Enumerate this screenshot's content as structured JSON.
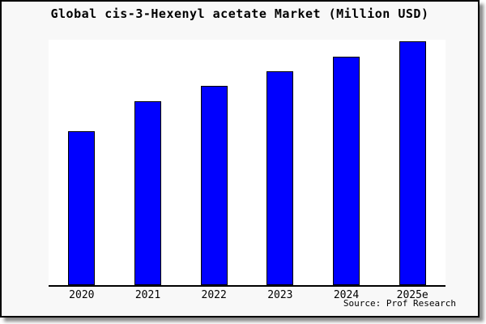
{
  "chart": {
    "title": "Global cis-3-Hexenyl acetate Market (Million USD)",
    "source_note": "Source: Prof Research",
    "colors": {
      "bar_fill": "#0000ff",
      "bar_border": "#000000",
      "plot_background": "#ffffff",
      "frame_background": "#f8f8f8",
      "axis_line": "#000000",
      "text": "#000000"
    }
  },
  "chart_data": {
    "type": "bar",
    "title": "Global cis-3-Hexenyl acetate Market (Million USD)",
    "categories": [
      "2020",
      "2021",
      "2022",
      "2023",
      "2024",
      "2025e"
    ],
    "values": [
      62.9,
      75.2,
      81.5,
      87.7,
      93.7,
      100
    ],
    "value_note": "relative units estimated from bar heights, indexed to 2025e = 100; no y-axis tick labels shown in chart",
    "xlabel": "",
    "ylabel": "",
    "ylim": [
      0,
      100.5
    ],
    "grid": false,
    "legend": false,
    "y_axis_visible": false,
    "annotation": "Source: Prof Research"
  }
}
